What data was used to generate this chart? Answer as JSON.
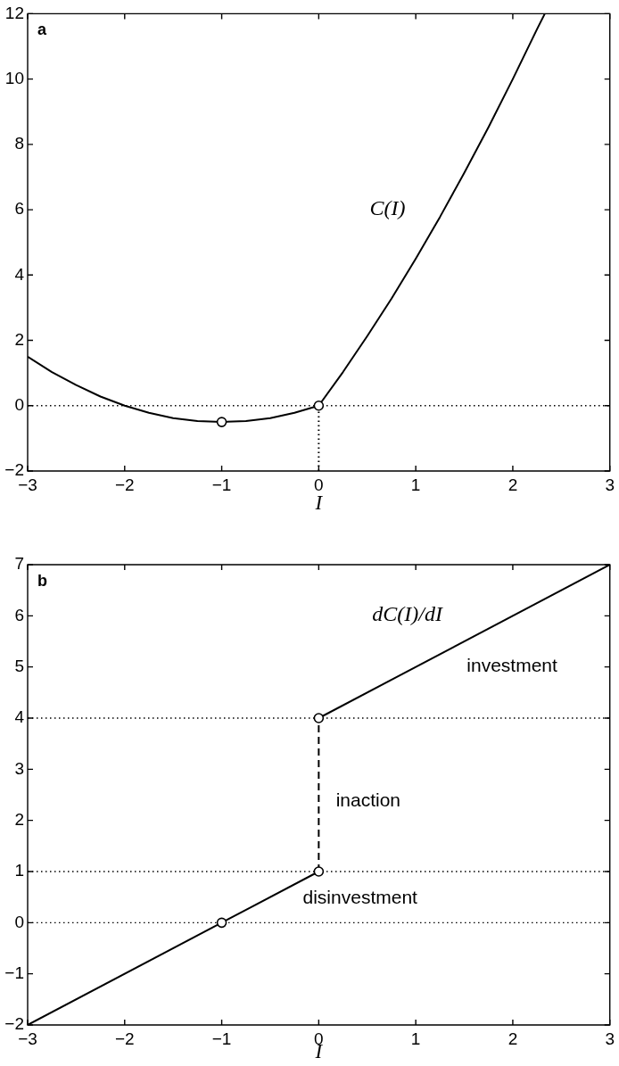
{
  "chart_data": [
    {
      "type": "line",
      "title": "a",
      "xlabel": "I",
      "xlim": [
        -3,
        3
      ],
      "xticks": [
        -3,
        -2,
        -1,
        0,
        1,
        2,
        3
      ],
      "ylim": [
        -2,
        12
      ],
      "yticks": [
        -2,
        0,
        2,
        4,
        6,
        8,
        10,
        12
      ],
      "series": [
        {
          "type": "line",
          "color": "#000000",
          "x": [
            -3,
            -2.75,
            -2.5,
            -2.25,
            -2,
            -1.75,
            -1.5,
            -1.25,
            -1,
            -0.75,
            -0.5,
            -0.25,
            0,
            0.25,
            0.5,
            0.75,
            1,
            1.25,
            1.5,
            1.75,
            2,
            2.25,
            2.33
          ],
          "values": [
            1.5,
            1.03,
            0.63,
            0.28,
            0,
            -0.22,
            -0.38,
            -0.47,
            -0.5,
            -0.47,
            -0.38,
            -0.22,
            0,
            1.03,
            2.13,
            3.28,
            4.5,
            5.78,
            7.13,
            8.53,
            10,
            11.53,
            12
          ]
        },
        {
          "type": "line",
          "color": "#000000",
          "line_style": "dotted",
          "x": [
            0,
            0
          ],
          "values": [
            -2,
            0
          ]
        },
        {
          "type": "scatter",
          "color": "#000000",
          "marker": "circle",
          "x": [
            -1,
            0
          ],
          "values": [
            -0.5,
            0
          ]
        }
      ],
      "ref_lines": [
        {
          "axis": "y",
          "value": 0,
          "color": "#000000",
          "line_style": "dotted"
        }
      ],
      "annotations": [
        "C(I)"
      ]
    },
    {
      "type": "line",
      "title": "b",
      "xlabel": "I",
      "xlim": [
        -3,
        3
      ],
      "xticks": [
        -3,
        -2,
        -1,
        0,
        1,
        2,
        3
      ],
      "ylim": [
        -2,
        7
      ],
      "yticks": [
        -2,
        -1,
        0,
        1,
        2,
        3,
        4,
        5,
        6,
        7
      ],
      "series": [
        {
          "type": "line",
          "color": "#000000",
          "x": [
            -3,
            0
          ],
          "values": [
            -2,
            1
          ]
        },
        {
          "type": "line",
          "color": "#000000",
          "line_style": "dashed",
          "x": [
            0,
            0
          ],
          "values": [
            1,
            4
          ]
        },
        {
          "type": "line",
          "color": "#000000",
          "x": [
            0,
            3
          ],
          "values": [
            4,
            7
          ]
        },
        {
          "type": "scatter",
          "color": "#000000",
          "marker": "circle",
          "x": [
            -1,
            0,
            0
          ],
          "values": [
            0,
            1,
            4
          ]
        }
      ],
      "ref_lines": [
        {
          "axis": "y",
          "value": 4,
          "color": "#000000",
          "line_style": "dotted"
        },
        {
          "axis": "y",
          "value": 1,
          "color": "#000000",
          "line_style": "dotted"
        },
        {
          "axis": "y",
          "value": 0,
          "color": "#000000",
          "line_style": "dotted"
        }
      ],
      "annotations": [
        "dC(I)/dI",
        "investment",
        "inaction",
        "disinvestment"
      ]
    }
  ]
}
